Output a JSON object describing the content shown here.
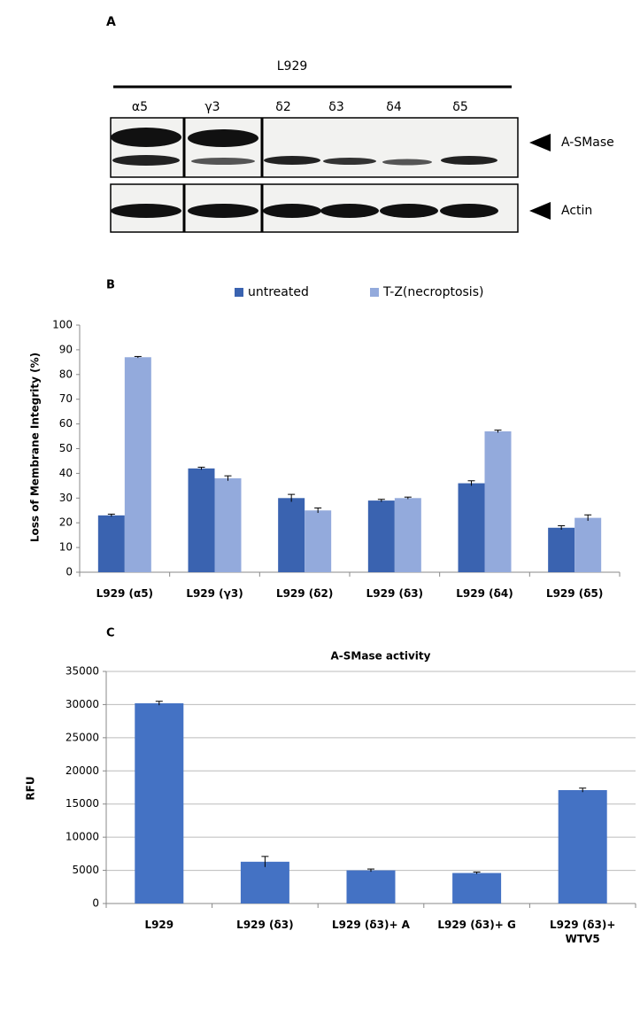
{
  "blot": {
    "panel_label": "A",
    "cell_line": "L929",
    "lanes": [
      "α5",
      "γ3",
      "δ2",
      "δ3",
      "δ4",
      "δ5"
    ],
    "bands": [
      "A-SMase",
      "Actin"
    ]
  },
  "chart_data": [
    {
      "type": "bar",
      "panel_label": "B",
      "ylabel": "Loss of Membrane Integrity (%)",
      "categories": [
        "L929 (α5)",
        "L929 (γ3)",
        "L929 (δ2)",
        "L929 (δ3)",
        "L929 (δ4)",
        "L929 (δ5)"
      ],
      "series": [
        {
          "name": "untreated",
          "color": "#3a63b0",
          "values": [
            23,
            42,
            30,
            29,
            36,
            18
          ],
          "errors": [
            0.5,
            0.5,
            1.5,
            0.5,
            1,
            0.8
          ]
        },
        {
          "name": "T-Z(necroptosis)",
          "color": "#93aadc",
          "values": [
            87,
            38,
            25,
            30,
            57,
            22
          ],
          "errors": [
            0.3,
            1,
            1,
            0.4,
            0.5,
            1.2
          ]
        }
      ],
      "ylim": [
        0,
        100
      ],
      "yticks": [
        0,
        10,
        20,
        30,
        40,
        50,
        60,
        70,
        80,
        90,
        100
      ],
      "grid": false,
      "legend": "top"
    },
    {
      "type": "bar",
      "panel_label": "C",
      "title": "A-SMase activity",
      "ylabel": "RFU",
      "categories": [
        "L929",
        "L929 (δ3)",
        "L929 (δ3)+ A",
        "L929 (δ3)+ G",
        "L929 (δ3)+\nWTV5"
      ],
      "values": [
        30200,
        6300,
        5000,
        4600,
        17100
      ],
      "errors": [
        300,
        800,
        200,
        150,
        300
      ],
      "color": "#4472c4",
      "ylim": [
        0,
        35000
      ],
      "yticks": [
        0,
        5000,
        10000,
        15000,
        20000,
        25000,
        30000,
        35000
      ],
      "grid": true
    }
  ]
}
